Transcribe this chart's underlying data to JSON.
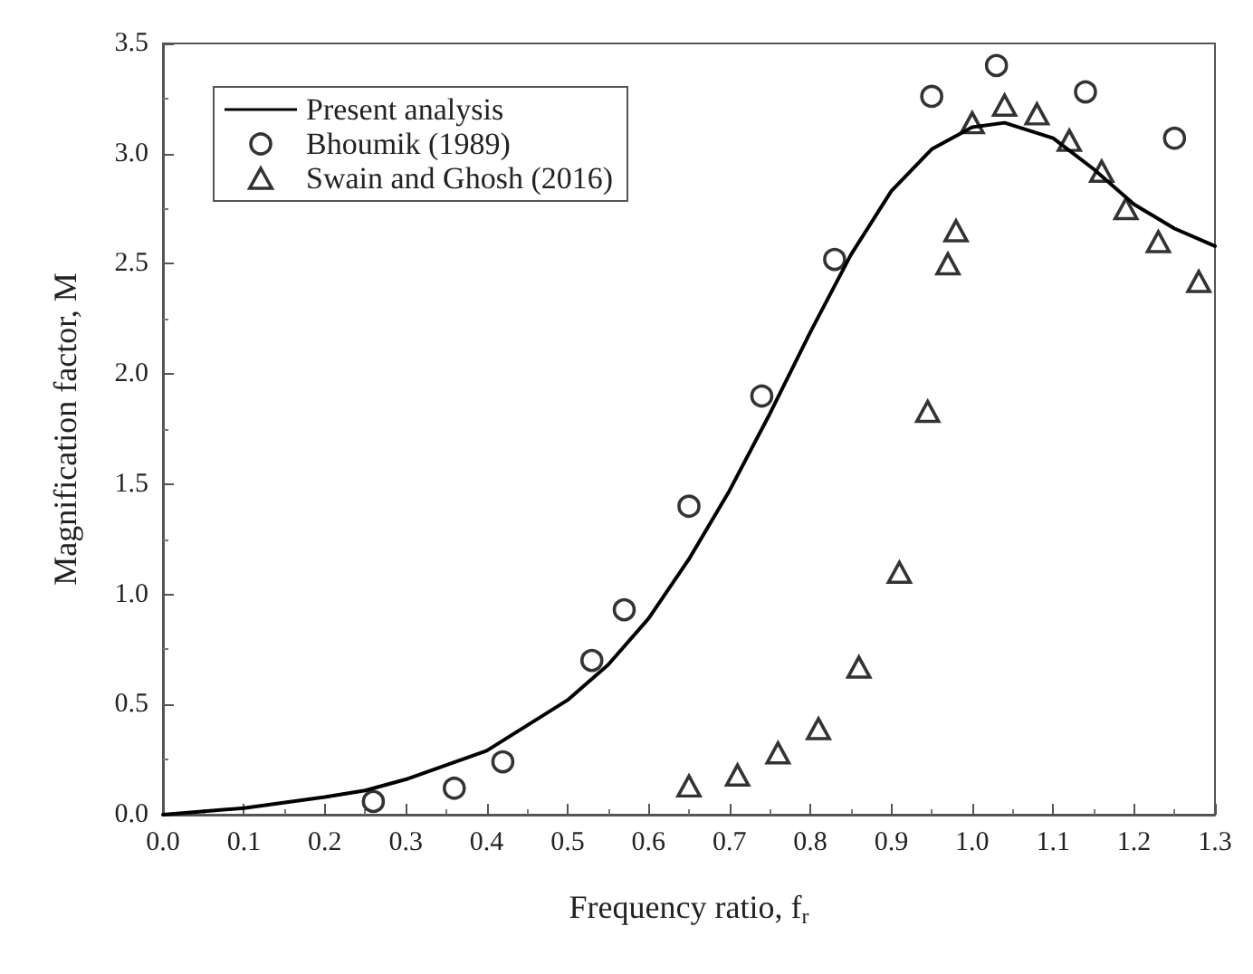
{
  "chart_data": {
    "type": "scatter",
    "xlabel": "Frequency ratio, f$_{r}$",
    "ylabel": "Magnification factor, M",
    "xlim": [
      0,
      1.3
    ],
    "ylim": [
      0,
      3.5
    ],
    "xticks": [
      {
        "value": 0,
        "label": "0.0"
      },
      {
        "value": 0.1,
        "label": "0.1"
      },
      {
        "value": 0.2,
        "label": "0.2"
      },
      {
        "value": 0.3,
        "label": "0.3"
      },
      {
        "value": 0.4,
        "label": "0.4"
      },
      {
        "value": 0.5,
        "label": "0.5"
      },
      {
        "value": 0.6,
        "label": "0.6"
      },
      {
        "value": 0.7,
        "label": "0.7"
      },
      {
        "value": 0.8,
        "label": "0.8"
      },
      {
        "value": 0.9,
        "label": "0.9"
      },
      {
        "value": 1,
        "label": "1.0"
      },
      {
        "value": 1.1,
        "label": "1.1"
      },
      {
        "value": 1.2,
        "label": "1.2"
      },
      {
        "value": 1.3,
        "label": "1.3"
      }
    ],
    "yticks": [
      {
        "value": 0,
        "label": "0.0"
      },
      {
        "value": 0.5,
        "label": "0.5"
      },
      {
        "value": 1,
        "label": "1.0"
      },
      {
        "value": 1.5,
        "label": "1.5"
      },
      {
        "value": 2,
        "label": "2.0"
      },
      {
        "value": 2.5,
        "label": "2.5"
      },
      {
        "value": 3,
        "label": "3.0"
      },
      {
        "value": 3.5,
        "label": "3.5"
      }
    ],
    "grid": false,
    "legend": "top left",
    "series": [
      {
        "name": "Present analysis",
        "type": "line",
        "color": "#000000",
        "marker": "none",
        "line_style": "solid",
        "x": [
          0,
          0.1,
          0.2,
          0.25,
          0.3,
          0.4,
          0.5,
          0.55,
          0.6,
          0.65,
          0.7,
          0.75,
          0.8,
          0.85,
          0.9,
          0.95,
          1.0,
          1.04,
          1.1,
          1.15,
          1.2,
          1.25,
          1.3
        ],
        "values": [
          0,
          0.03,
          0.08,
          0.11,
          0.16,
          0.29,
          0.52,
          0.68,
          0.89,
          1.16,
          1.47,
          1.82,
          2.19,
          2.54,
          2.83,
          3.02,
          3.12,
          3.14,
          3.07,
          2.93,
          2.77,
          2.66,
          2.58
        ]
      },
      {
        "name": "Bhoumik (1989)",
        "color": "#000000",
        "marker": "circle",
        "x": [
          0.26,
          0.36,
          0.42,
          0.53,
          0.57,
          0.65,
          0.74,
          0.83,
          0.95,
          1.03,
          1.14,
          1.25
        ],
        "values": [
          0.06,
          0.12,
          0.24,
          0.7,
          0.93,
          1.4,
          1.9,
          2.52,
          3.26,
          3.4,
          3.28,
          3.07
        ]
      },
      {
        "name": "Swain and Ghosh (2016)",
        "color": "#000000",
        "marker": "triangle",
        "x": [
          0.65,
          0.71,
          0.76,
          0.81,
          0.86,
          0.91,
          0.945,
          0.97,
          0.98,
          1.0,
          1.04,
          1.08,
          1.12,
          1.16,
          1.19,
          1.23,
          1.28
        ],
        "values": [
          0.13,
          0.18,
          0.28,
          0.39,
          0.67,
          1.1,
          1.83,
          2.5,
          2.65,
          3.14,
          3.22,
          3.18,
          3.06,
          2.92,
          2.75,
          2.6,
          2.42
        ]
      }
    ]
  }
}
